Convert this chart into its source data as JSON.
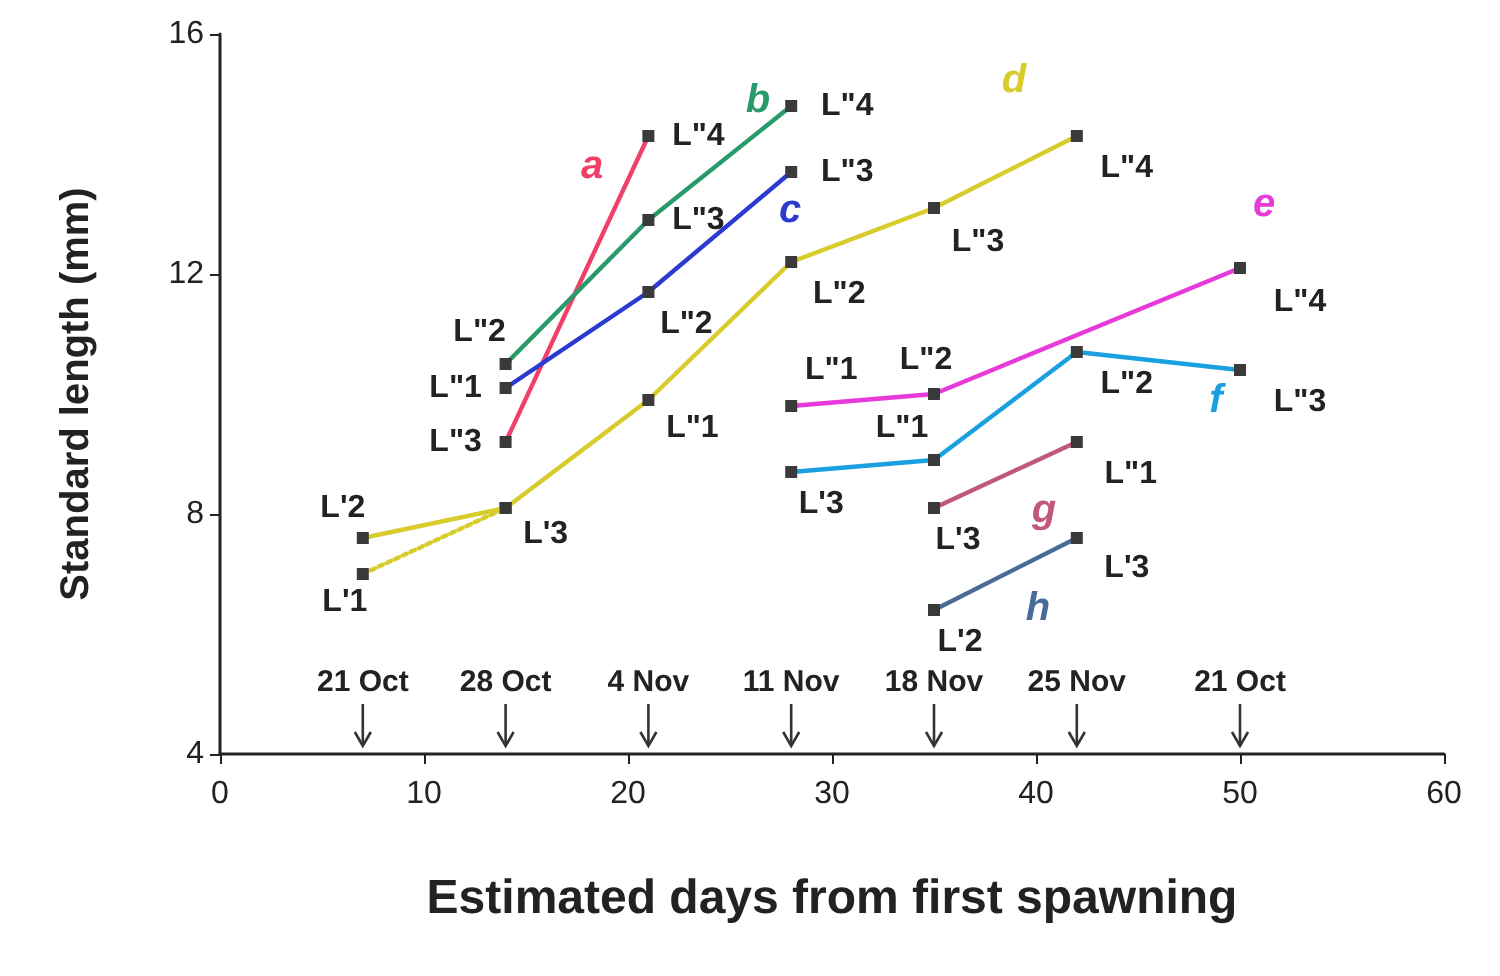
{
  "chart_data": {
    "type": "line",
    "xlabel": "Estimated days from first spawning",
    "ylabel": "Standard length (mm)",
    "xlim": [
      0,
      60
    ],
    "xticks": [
      0,
      10,
      20,
      30,
      40,
      50,
      60
    ],
    "ylim": [
      4,
      16
    ],
    "yticks": [
      4,
      8,
      12,
      16
    ],
    "grid": false,
    "legend": false,
    "marker": "square",
    "series": [
      {
        "name": "a",
        "color": "#f0406a",
        "x": [
          14,
          21
        ],
        "values": [
          9.2,
          14.3
        ]
      },
      {
        "name": "b",
        "color": "#2a9a6a",
        "x": [
          14,
          21,
          28
        ],
        "values": [
          10.5,
          12.9,
          14.8
        ]
      },
      {
        "name": "c",
        "color": "#2b3bd0",
        "x": [
          14,
          21,
          28
        ],
        "values": [
          10.1,
          11.7,
          13.7
        ]
      },
      {
        "name": "d",
        "color": "#d8cc2c",
        "x": [
          7,
          14,
          21,
          28,
          35,
          42
        ],
        "values": [
          7.6,
          8.1,
          9.9,
          12.2,
          13.1,
          14.3
        ]
      },
      {
        "color": "#d8cc2c",
        "x": [
          7,
          14
        ],
        "values": [
          7.0,
          8.1
        ],
        "line_style": "dotted"
      },
      {
        "name": "e",
        "color": "#e83ad8",
        "x": [
          28,
          35,
          50
        ],
        "values": [
          9.8,
          10.0,
          12.1
        ]
      },
      {
        "name": "f",
        "color": "#1aa0e0",
        "x": [
          28,
          35,
          42,
          50
        ],
        "values": [
          8.7,
          8.9,
          10.7,
          10.4
        ]
      },
      {
        "name": "g",
        "color": "#c05878",
        "x": [
          35,
          42
        ],
        "values": [
          8.1,
          9.2
        ]
      },
      {
        "name": "h",
        "color": "#4a6a9a",
        "x": [
          35,
          42
        ],
        "values": [
          6.4,
          7.6
        ]
      }
    ],
    "annotations": [
      {
        "text": "L'1",
        "x": 7,
        "y": 7.0
      },
      {
        "text": "L'2",
        "x": 7,
        "y": 7.6
      },
      {
        "text": "L'3",
        "x": 14,
        "y": 8.1
      },
      {
        "text": "L\"1",
        "x": 21,
        "y": 9.9
      },
      {
        "text": "L\"2",
        "x": 28,
        "y": 12.2
      },
      {
        "text": "L\"3",
        "x": 35,
        "y": 13.1
      },
      {
        "text": "L\"4",
        "x": 42,
        "y": 14.3
      },
      {
        "text": "L\"3",
        "x": 14,
        "y": 9.2
      },
      {
        "text": "L\"4",
        "x": 21,
        "y": 14.3
      },
      {
        "text": "L\"2",
        "x": 14,
        "y": 10.5
      },
      {
        "text": "L\"3",
        "x": 21,
        "y": 12.9
      },
      {
        "text": "L\"4",
        "x": 28,
        "y": 14.8
      },
      {
        "text": "L\"1",
        "x": 14,
        "y": 10.1
      },
      {
        "text": "L\"2",
        "x": 21,
        "y": 11.7
      },
      {
        "text": "L\"3",
        "x": 28,
        "y": 13.7
      },
      {
        "text": "L\"1",
        "x": 28,
        "y": 9.8
      },
      {
        "text": "L\"2",
        "x": 35,
        "y": 10.0
      },
      {
        "text": "L\"4",
        "x": 50,
        "y": 12.1
      },
      {
        "text": "L'3",
        "x": 28,
        "y": 8.7
      },
      {
        "text": "L\"1",
        "x": 35,
        "y": 8.9
      },
      {
        "text": "L\"2",
        "x": 42,
        "y": 10.7
      },
      {
        "text": "L\"3",
        "x": 50,
        "y": 10.4
      },
      {
        "text": "L'3",
        "x": 35,
        "y": 8.1
      },
      {
        "text": "L\"1",
        "x": 42,
        "y": 9.2
      },
      {
        "text": "L'2",
        "x": 35,
        "y": 6.4
      },
      {
        "text": "L'3",
        "x": 42,
        "y": 7.6
      },
      {
        "text": "21 Oct",
        "x": 7
      },
      {
        "text": "28 Oct",
        "x": 14
      },
      {
        "text": "4 Nov",
        "x": 21
      },
      {
        "text": "11 Nov",
        "x": 28
      },
      {
        "text": "18 Nov",
        "x": 35
      },
      {
        "text": "25 Nov",
        "x": 42
      },
      {
        "text": "21 Oct",
        "x": 50
      }
    ]
  }
}
